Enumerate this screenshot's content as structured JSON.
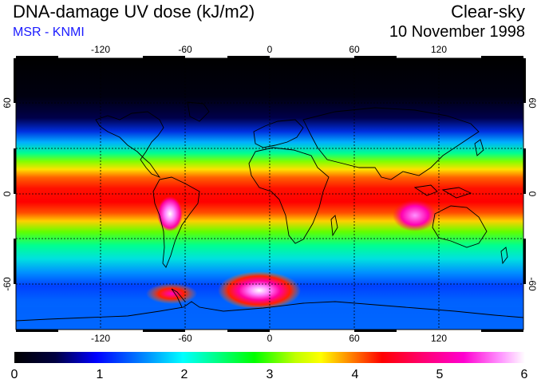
{
  "title": "DNA-damage UV dose (kJ/m2)",
  "subtitle": "MSR - KNMI",
  "condition": "Clear-sky",
  "date": "10 November 1998",
  "map": {
    "lon_ticks": [
      "-120",
      "-60",
      "0",
      "60",
      "120"
    ],
    "lat_ticks_left": [
      "60",
      "0",
      "-60"
    ],
    "lat_ticks_right": [
      "60",
      "0",
      "-60"
    ]
  },
  "colorbar": {
    "labels": [
      "0",
      "1",
      "2",
      "3",
      "4",
      "5",
      "6"
    ],
    "range": [
      0,
      6
    ],
    "colors": [
      "#000000",
      "#000070",
      "#0000ff",
      "#00a0ff",
      "#00ffff",
      "#00ff80",
      "#00ff00",
      "#c0ff00",
      "#ffff00",
      "#ff8000",
      "#ff0000",
      "#ff0060",
      "#ff00c0",
      "#ff80ff",
      "#ffffff"
    ]
  }
}
